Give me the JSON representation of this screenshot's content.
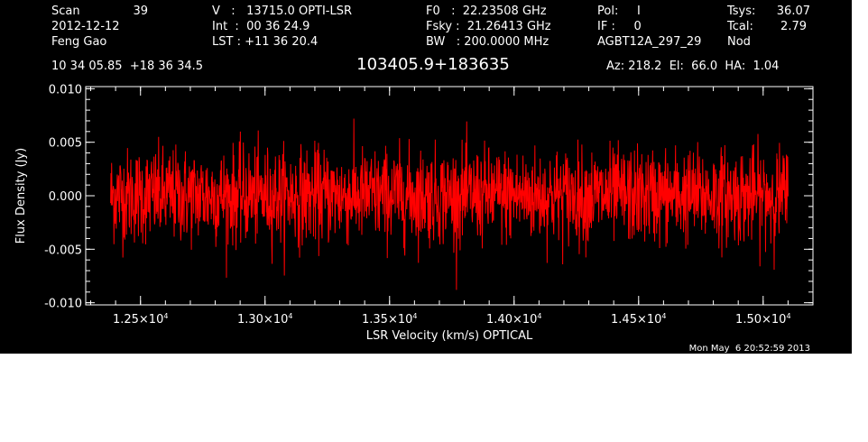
{
  "header": {
    "col1": {
      "scan_label": "Scan",
      "scan_value": "39",
      "date": "2012-12-12",
      "observer": "Feng Gao"
    },
    "col2": {
      "v_line": "V   :   13715.0 OPTI-LSR",
      "int_line": "Int  :  00 36 24.9",
      "lst_line": "LST : +11 36 20.4"
    },
    "col3": {
      "f0_line": "F0   :  22.23508 GHz",
      "fsky_line": "Fsky :  21.26413 GHz",
      "bw_line": "BW   : 200.0000 MHz"
    },
    "col4": {
      "pol_line": "Pol:     I",
      "if_line": "IF :     0",
      "project": "AGBT12A_297_29"
    },
    "col5": {
      "tsys_label": "Tsys:",
      "tsys_value": "36.07",
      "tcal_label": "Tcal:",
      "tcal_value": "2.79",
      "mode": "Nod"
    },
    "coords": "10 34 05.85  +18 36 34.5",
    "source_name": "103405.9+183635",
    "az_el_ha": "Az: 218.2  El:  66.0  HA:  1.04"
  },
  "timestamp": "Mon May  6 20:52:59 2013",
  "colors": {
    "background": "#000000",
    "axes": "#ffffff",
    "trace": "#ff0000"
  },
  "chart_data": {
    "type": "line",
    "title": "103405.9+183635",
    "xlabel": "LSR Velocity (km/s) OPTICAL",
    "ylabel": "Flux Density (Jy)",
    "xlim": [
      12280,
      15200
    ],
    "ylim": [
      -0.0102,
      0.0102
    ],
    "x_ticks": [
      12500,
      13000,
      13500,
      14000,
      14500,
      15000
    ],
    "x_tick_labels": [
      {
        "mantissa": "1.25",
        "exp": "4"
      },
      {
        "mantissa": "1.30",
        "exp": "4"
      },
      {
        "mantissa": "1.35",
        "exp": "4"
      },
      {
        "mantissa": "1.40",
        "exp": "4"
      },
      {
        "mantissa": "1.45",
        "exp": "4"
      },
      {
        "mantissa": "1.50",
        "exp": "4"
      }
    ],
    "y_ticks": [
      -0.01,
      -0.005,
      0.0,
      0.005,
      0.01
    ],
    "y_tick_labels": [
      "-0.010",
      "-0.005",
      "0.000",
      "0.005",
      "0.010"
    ],
    "grid": false,
    "series": [
      {
        "x_range": [
          12380,
          15100
        ],
        "n_points": 2048,
        "mean": 0.0,
        "rms": 0.0022,
        "min": -0.0088,
        "max": 0.0093,
        "note_values": "noise-like spectrum; envelope approx ±0.0055 Jy with spikes to +0.009 and -0.0088"
      }
    ]
  }
}
